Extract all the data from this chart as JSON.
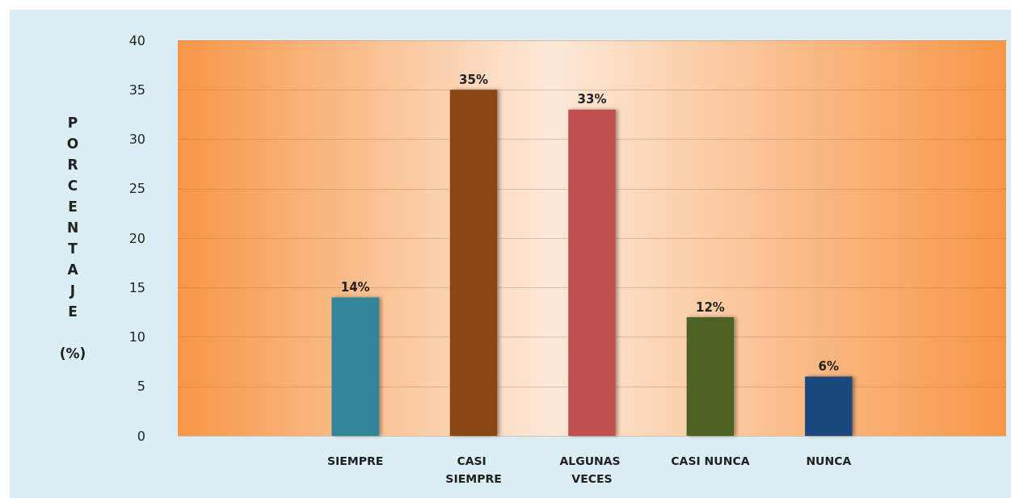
{
  "chart_data": {
    "type": "bar",
    "ylabel": "PORCENTAJE (%)",
    "categories": [
      null,
      "SIEMPRE",
      "CASI SIEMPRE",
      "ALGUNAS VECES",
      "CASI NUNCA",
      "NUNCA",
      null
    ],
    "values": [
      null,
      14,
      35,
      33,
      12,
      6,
      null
    ],
    "colors": [
      "#31849b",
      "#31849b",
      "#8b4513",
      "#c0504d",
      "#4f6228",
      "#1f497d",
      "#1f497d"
    ],
    "value_labels": [
      null,
      "14%",
      "35%",
      "33%",
      "12%",
      "6%",
      null
    ],
    "ylim": [
      0,
      40
    ],
    "yticks": [
      0,
      5,
      10,
      15,
      20,
      25,
      30,
      35,
      40
    ],
    "grid": "y"
  }
}
